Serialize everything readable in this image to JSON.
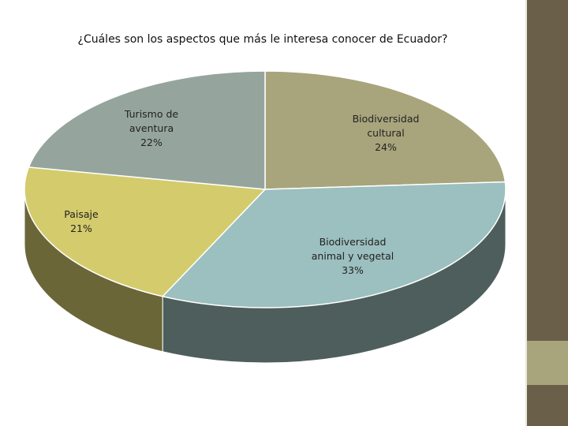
{
  "chart_data": {
    "type": "pie",
    "title": "¿Cuáles son los aspectos que más le interesa conocer de Ecuador?",
    "slices": [
      {
        "label_lines": [
          "Biodiversidad",
          "cultural"
        ],
        "pct_label": "24%",
        "value": 24,
        "top_color": "#a8a57c",
        "side_color": "#7c7956"
      },
      {
        "label_lines": [
          "Biodiversidad",
          "animal y vegetal"
        ],
        "pct_label": "33%",
        "value": 33,
        "top_color": "#9cbfbf",
        "side_color": "#4e5e5c"
      },
      {
        "label_lines": [
          "Paisaje"
        ],
        "pct_label": "21%",
        "value": 21,
        "top_color": "#d4cb6c",
        "side_color": "#6b6638"
      },
      {
        "label_lines": [
          "Turismo de",
          "aventura"
        ],
        "pct_label": "22%",
        "value": 22,
        "top_color": "#95a59d",
        "side_color": "#6a7770"
      }
    ],
    "legend": "none",
    "view": "3d-tilted"
  },
  "theme": {
    "sidebar_colors": [
      "#6a5f48",
      "#a8a57c",
      "#6a5f48"
    ]
  }
}
